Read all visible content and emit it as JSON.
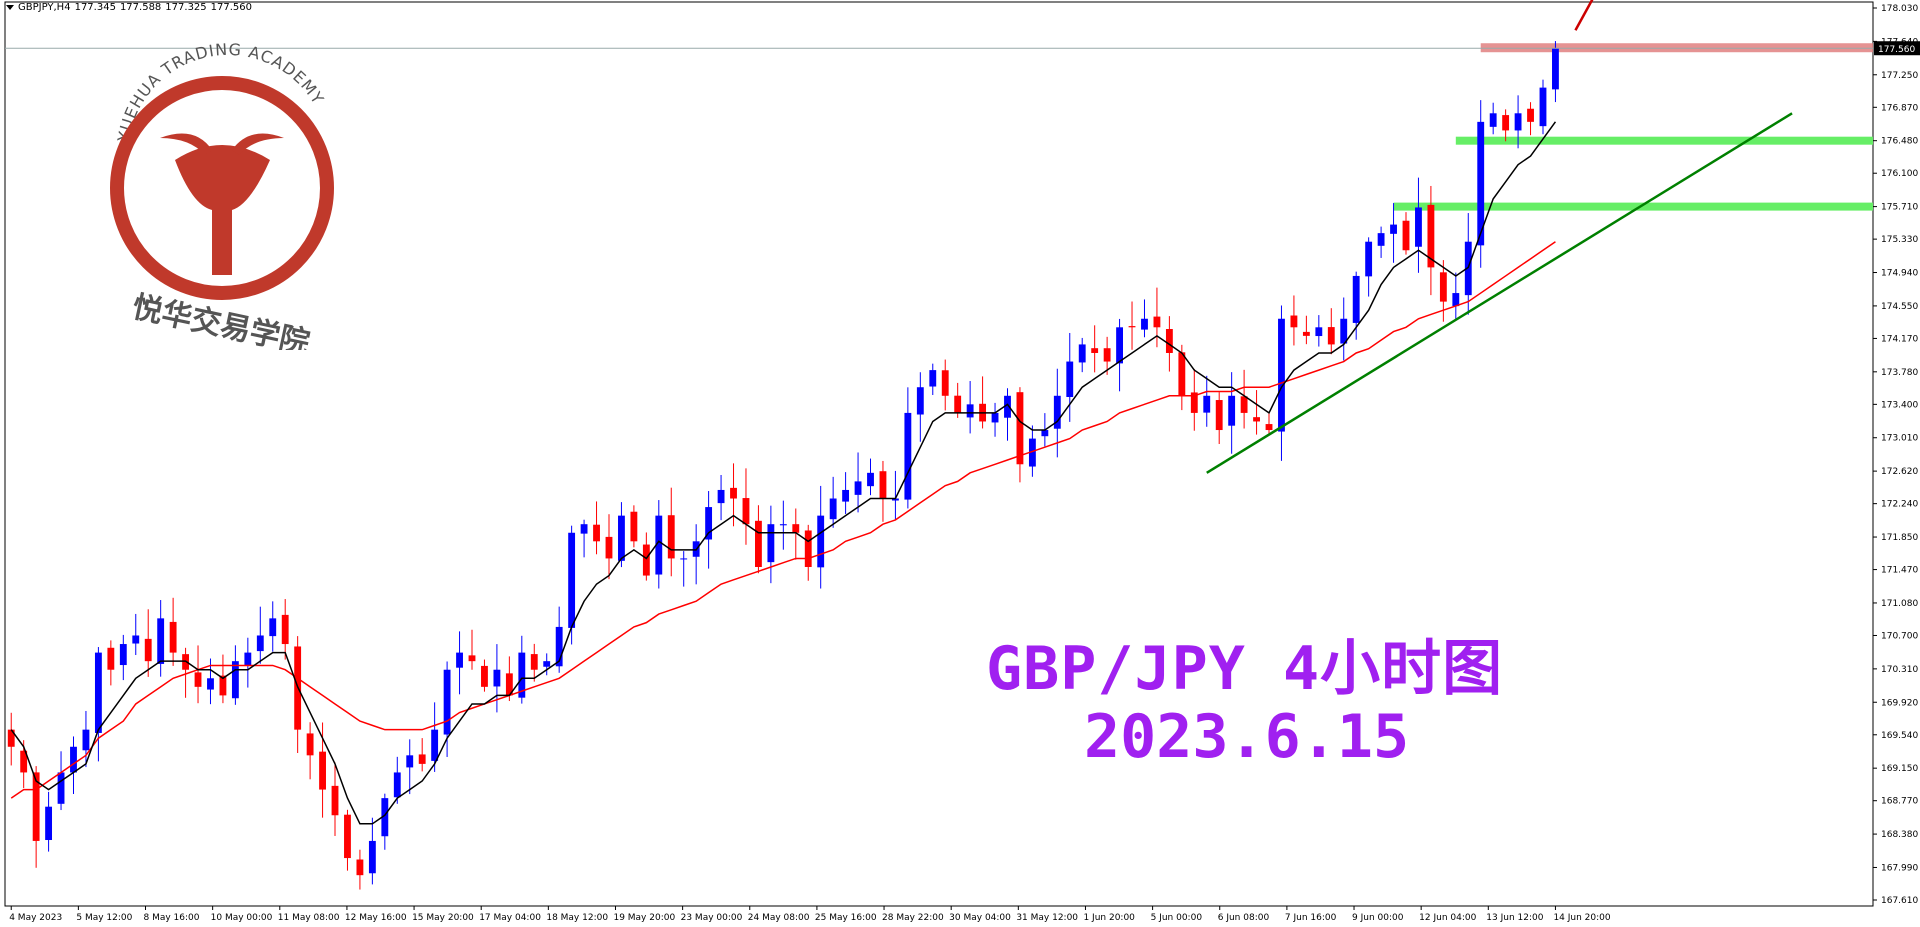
{
  "header": {
    "symbol": "GBPJPY,H4",
    "open": "177.345",
    "high": "177.588",
    "low": "177.325",
    "close": "177.560"
  },
  "logo": {
    "text_en": "YUEHUA TRADING ACADEMY",
    "text_cn": "悦华交易学院",
    "color": "#c0392b"
  },
  "annotation": {
    "line1": "GBP/JPY 4小时图",
    "line2": "2023.6.15",
    "color": "#a020f0"
  },
  "colors": {
    "bull": "#0000ff",
    "bear": "#ff0000",
    "ema_fast": "#000000",
    "ema_slow": "#ff0000",
    "trendline": "#008000",
    "support_zone": "#66ee66",
    "resistance_zone": "#e08080",
    "arrow": "#cc0000"
  },
  "chart_data": {
    "type": "candlestick",
    "symbol": "GBPJPY",
    "timeframe": "H4",
    "ylim": [
      167.61,
      178.03
    ],
    "y_ticks": [
      "178.030",
      "177.640",
      "177.250",
      "176.870",
      "176.480",
      "176.100",
      "175.710",
      "175.330",
      "174.940",
      "174.550",
      "174.170",
      "173.780",
      "173.400",
      "173.010",
      "172.620",
      "172.240",
      "171.850",
      "171.470",
      "171.080",
      "170.700",
      "170.310",
      "169.920",
      "169.540",
      "169.150",
      "168.770",
      "168.380",
      "167.990",
      "167.610"
    ],
    "x_ticks": [
      "4 May 2023",
      "5 May 12:00",
      "8 May 16:00",
      "10 May 00:00",
      "11 May 08:00",
      "12 May 16:00",
      "15 May 20:00",
      "17 May 04:00",
      "18 May 12:00",
      "19 May 20:00",
      "23 May 00:00",
      "24 May 08:00",
      "25 May 16:00",
      "28 May 22:00",
      "30 May 04:00",
      "31 May 12:00",
      "1 Jun 20:00",
      "5 Jun 00:00",
      "6 Jun 08:00",
      "7 Jun 16:00",
      "9 Jun 00:00",
      "12 Jun 04:00",
      "13 Jun 12:00",
      "14 Jun 20:00"
    ],
    "current_price": "177.560",
    "closes": [
      169.4,
      169.1,
      168.3,
      168.7,
      169.1,
      169.4,
      169.6,
      170.5,
      170.3,
      170.6,
      170.7,
      170.4,
      170.9,
      170.5,
      170.3,
      170.1,
      170.2,
      170.0,
      170.4,
      170.5,
      170.7,
      170.9,
      170.6,
      169.6,
      169.3,
      168.9,
      168.6,
      168.1,
      167.9,
      168.3,
      168.8,
      169.1,
      169.3,
      169.2,
      169.6,
      170.3,
      170.5,
      170.4,
      170.1,
      170.3,
      170.0,
      170.5,
      170.3,
      170.4,
      170.8,
      171.9,
      172.0,
      171.8,
      171.6,
      172.1,
      171.8,
      171.4,
      172.1,
      171.6,
      171.6,
      171.8,
      172.2,
      172.4,
      172.3,
      172.0,
      171.5,
      172.0,
      172.0,
      171.9,
      171.5,
      172.1,
      172.3,
      172.4,
      172.5,
      172.6,
      172.3,
      172.3,
      173.3,
      173.6,
      173.8,
      173.5,
      173.3,
      173.4,
      173.2,
      173.3,
      173.5,
      172.7,
      173.0,
      173.1,
      173.5,
      173.9,
      174.1,
      174.0,
      173.9,
      174.3,
      174.3,
      174.4,
      174.3,
      174.0,
      173.5,
      173.3,
      173.5,
      173.1,
      173.5,
      173.3,
      173.2,
      173.1,
      174.4,
      174.3,
      174.2,
      174.3,
      174.1,
      174.4,
      174.9,
      175.3,
      175.4,
      175.5,
      175.2,
      175.7,
      175.0,
      174.6,
      174.7,
      175.3,
      176.7,
      176.8,
      176.6,
      176.8,
      176.7,
      177.1,
      177.56
    ],
    "ema_fast": [
      169.6,
      169.4,
      169.0,
      168.9,
      169.0,
      169.1,
      169.2,
      169.6,
      169.8,
      170.0,
      170.2,
      170.3,
      170.4,
      170.4,
      170.4,
      170.3,
      170.3,
      170.2,
      170.3,
      170.3,
      170.4,
      170.5,
      170.5,
      170.1,
      169.8,
      169.5,
      169.2,
      168.8,
      168.5,
      168.5,
      168.6,
      168.8,
      168.9,
      169.0,
      169.2,
      169.5,
      169.7,
      169.9,
      169.9,
      170.0,
      170.0,
      170.2,
      170.2,
      170.3,
      170.4,
      170.8,
      171.1,
      171.3,
      171.4,
      171.6,
      171.7,
      171.6,
      171.8,
      171.7,
      171.7,
      171.7,
      171.9,
      172.0,
      172.1,
      172.0,
      171.9,
      171.9,
      171.9,
      171.9,
      171.8,
      171.9,
      172.0,
      172.1,
      172.2,
      172.3,
      172.3,
      172.3,
      172.6,
      172.9,
      173.2,
      173.3,
      173.3,
      173.3,
      173.3,
      173.3,
      173.4,
      173.2,
      173.1,
      173.1,
      173.2,
      173.4,
      173.6,
      173.7,
      173.8,
      173.9,
      174.0,
      174.1,
      174.2,
      174.1,
      174.0,
      173.8,
      173.7,
      173.6,
      173.6,
      173.5,
      173.4,
      173.3,
      173.6,
      173.8,
      173.9,
      174.0,
      174.0,
      174.1,
      174.3,
      174.5,
      174.8,
      175.0,
      175.1,
      175.2,
      175.1,
      175.0,
      174.9,
      175.0,
      175.4,
      175.8,
      176.0,
      176.2,
      176.3,
      176.5,
      176.7
    ],
    "ema_slow": [
      168.8,
      168.9,
      168.9,
      169.0,
      169.1,
      169.2,
      169.3,
      169.5,
      169.6,
      169.7,
      169.9,
      170.0,
      170.1,
      170.2,
      170.25,
      170.3,
      170.35,
      170.35,
      170.35,
      170.35,
      170.35,
      170.35,
      170.3,
      170.2,
      170.1,
      170.0,
      169.9,
      169.8,
      169.7,
      169.65,
      169.6,
      169.6,
      169.6,
      169.6,
      169.65,
      169.7,
      169.8,
      169.85,
      169.9,
      169.95,
      170.0,
      170.05,
      170.1,
      170.15,
      170.2,
      170.3,
      170.4,
      170.5,
      170.6,
      170.7,
      170.8,
      170.85,
      170.95,
      171.0,
      171.05,
      171.1,
      171.2,
      171.3,
      171.35,
      171.4,
      171.45,
      171.5,
      171.55,
      171.6,
      171.6,
      171.65,
      171.7,
      171.8,
      171.85,
      171.9,
      172.0,
      172.05,
      172.15,
      172.25,
      172.35,
      172.45,
      172.5,
      172.6,
      172.65,
      172.7,
      172.75,
      172.8,
      172.85,
      172.9,
      172.95,
      173.0,
      173.1,
      173.15,
      173.2,
      173.3,
      173.35,
      173.4,
      173.45,
      173.5,
      173.5,
      173.5,
      173.55,
      173.55,
      173.55,
      173.6,
      173.6,
      173.6,
      173.65,
      173.7,
      173.75,
      173.8,
      173.85,
      173.9,
      174.0,
      174.05,
      174.15,
      174.25,
      174.3,
      174.4,
      174.45,
      174.5,
      174.55,
      174.6,
      174.7,
      174.8,
      174.9,
      175.0,
      175.1,
      175.2,
      175.3
    ],
    "levels": {
      "resistance": 177.56,
      "support_1": 176.48,
      "support_2": 175.71
    },
    "trendline": {
      "from_index": 96,
      "from_price": 172.6,
      "to_index": 143,
      "to_price": 176.8
    },
    "indicators": [
      "EMA fast (black)",
      "EMA slow (red)"
    ],
    "grid": false
  }
}
